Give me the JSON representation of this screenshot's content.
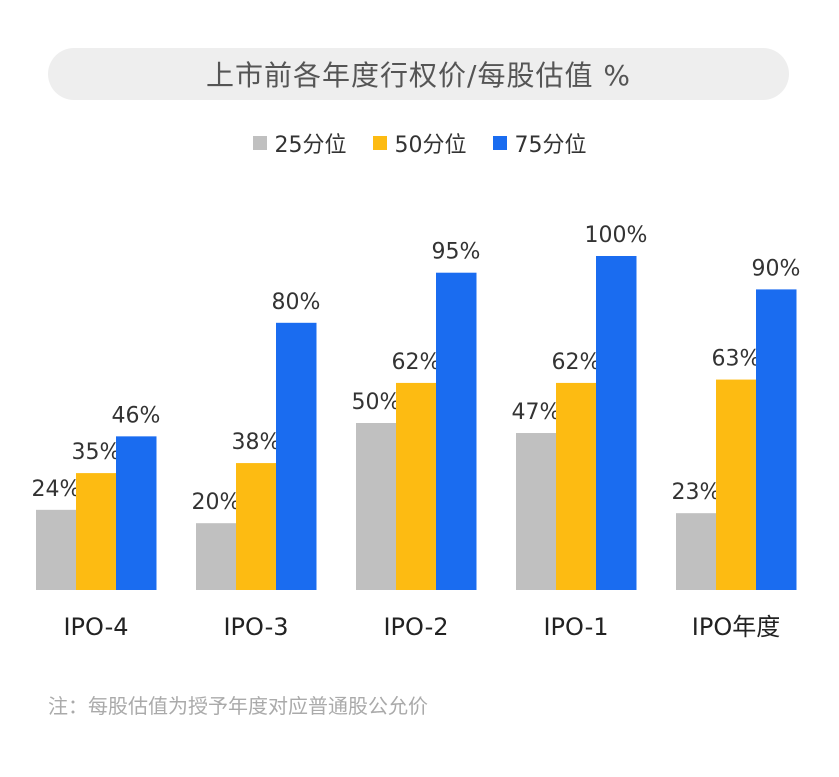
{
  "chart_data": {
    "type": "bar",
    "title": "上市前各年度行权价/每股估值 %",
    "categories": [
      "IPO-4",
      "IPO-3",
      "IPO-2",
      "IPO-1",
      "IPO年度"
    ],
    "series": [
      {
        "name": "25分位",
        "color": "#c0c0c0",
        "values": [
          24,
          20,
          50,
          47,
          23
        ],
        "labels": [
          "24%",
          "20%",
          "50%",
          "47%",
          "23%"
        ]
      },
      {
        "name": "50分位",
        "color": "#fdbb12",
        "values": [
          35,
          38,
          62,
          62,
          63
        ],
        "labels": [
          "35%",
          "38%",
          "62%",
          "62%",
          "63%"
        ]
      },
      {
        "name": "75分位",
        "color": "#1a6cf0",
        "values": [
          46,
          80,
          95,
          100,
          90
        ],
        "labels": [
          "46%",
          "80%",
          "95%",
          "100%",
          "90%"
        ]
      }
    ],
    "ylim": [
      0,
      100
    ],
    "grid": false,
    "legend_position": "top-center"
  },
  "note": "注：每股估值为授予年度对应普通股公允价"
}
